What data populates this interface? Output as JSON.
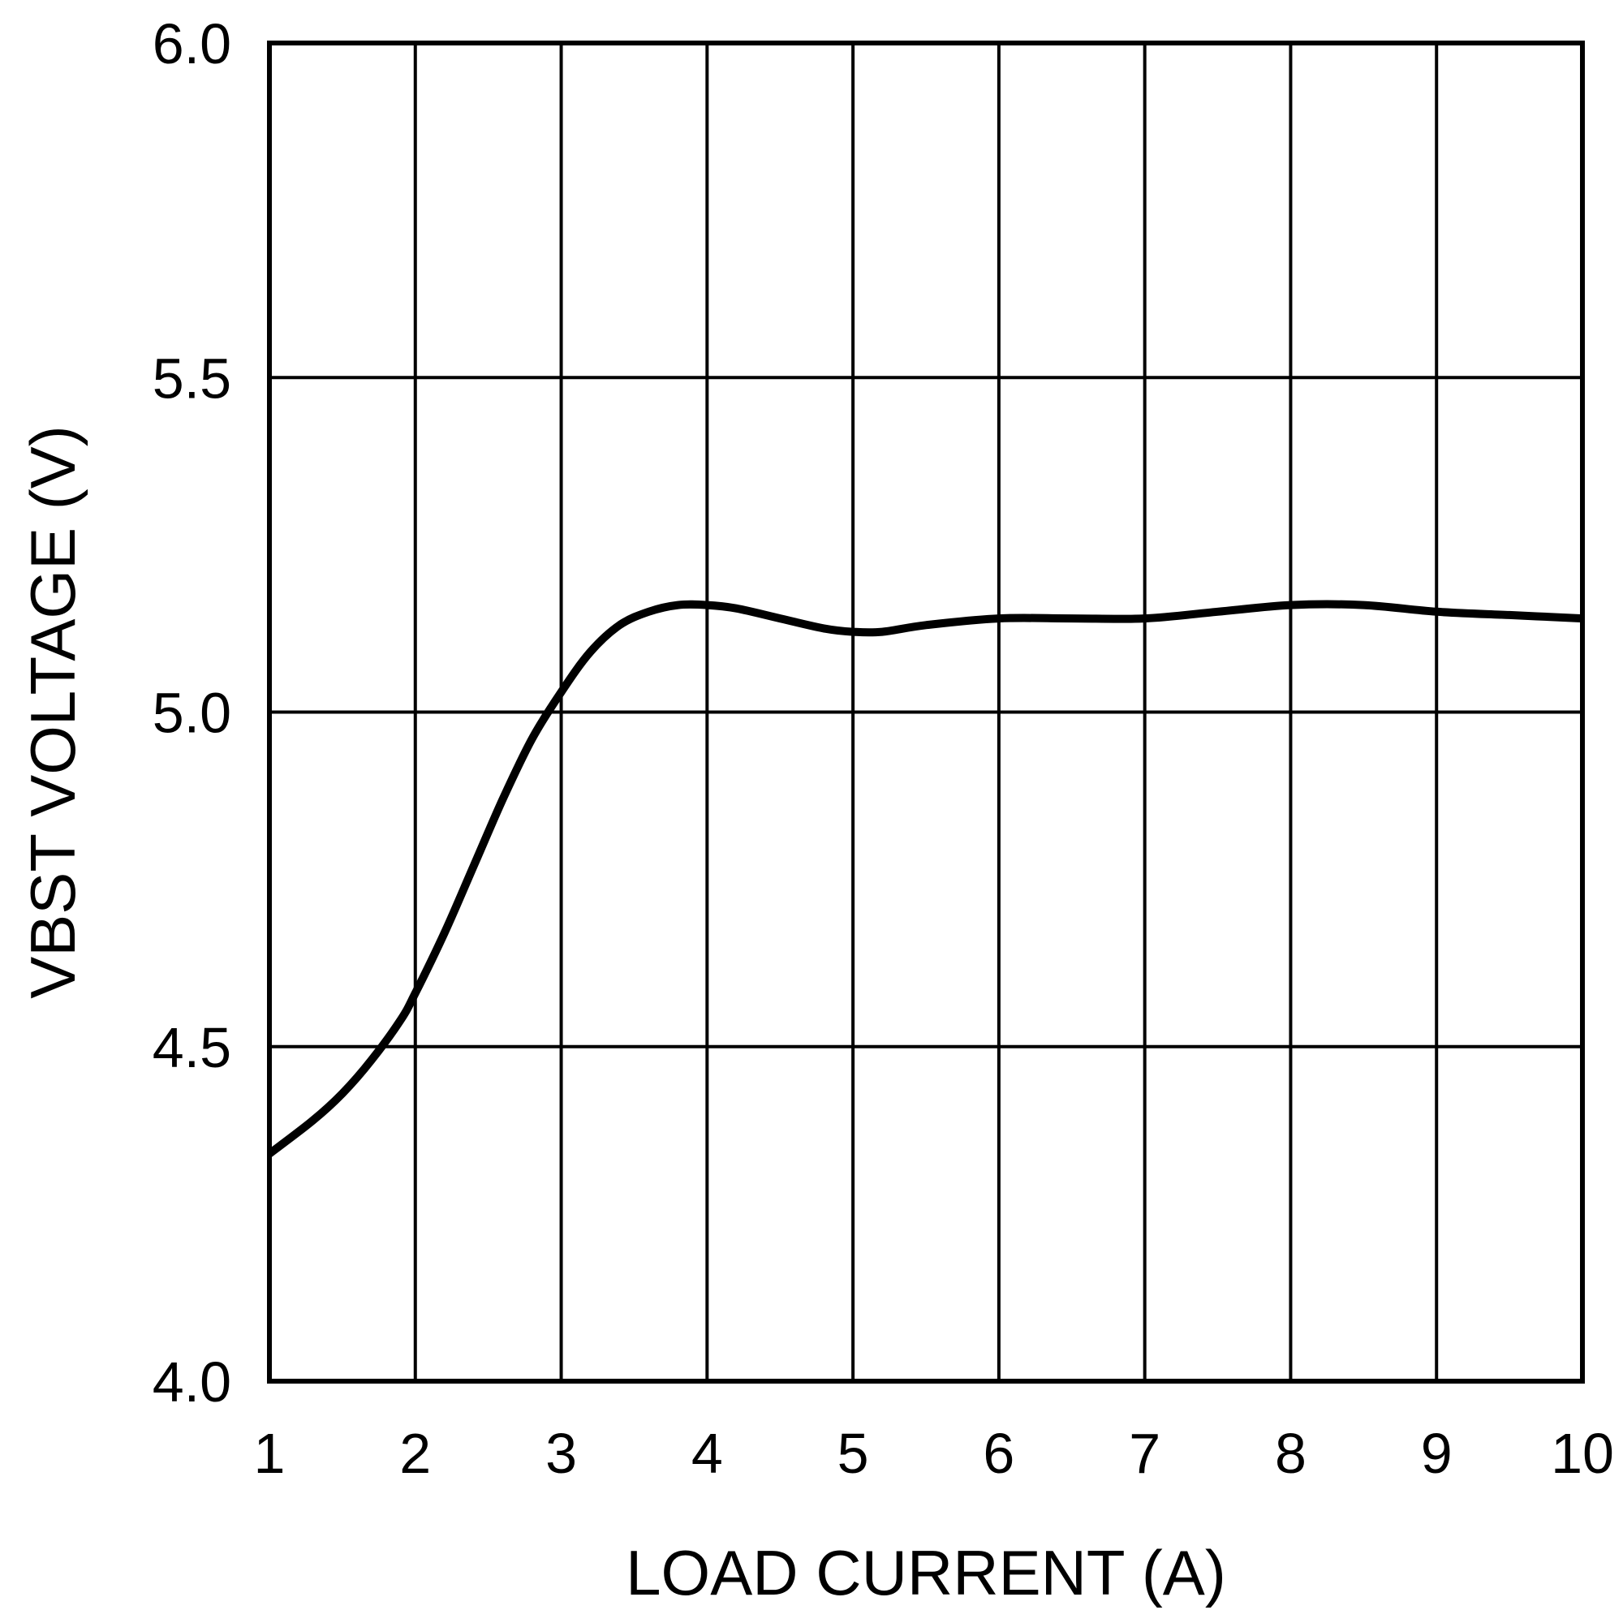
{
  "chart_data": {
    "type": "line",
    "title": "",
    "xlabel": "LOAD CURRENT (A)",
    "ylabel": "VBST VOLTAGE (V)",
    "xlim": [
      1,
      10
    ],
    "ylim": [
      4.0,
      6.0
    ],
    "x_ticks": [
      1,
      2,
      3,
      4,
      5,
      6,
      7,
      8,
      9,
      10
    ],
    "y_ticks": [
      4.0,
      4.5,
      5.0,
      5.5,
      6.0
    ],
    "x_tick_labels": [
      "1",
      "2",
      "3",
      "4",
      "5",
      "6",
      "7",
      "8",
      "9",
      "10"
    ],
    "y_tick_labels": [
      "4.0",
      "4.5",
      "5.0",
      "5.5",
      "6.0"
    ],
    "grid": true,
    "series": [
      {
        "color": "#000000",
        "x": [
          1.0,
          1.3,
          1.5,
          1.7,
          1.9,
          2.0,
          2.2,
          2.4,
          2.6,
          2.8,
          3.0,
          3.2,
          3.4,
          3.6,
          3.8,
          4.0,
          4.2,
          4.5,
          4.8,
          5.0,
          5.2,
          5.5,
          6.0,
          6.5,
          7.0,
          7.5,
          8.0,
          8.5,
          9.0,
          9.5,
          10.0
        ],
        "values": [
          4.34,
          4.39,
          4.43,
          4.48,
          4.54,
          4.58,
          4.67,
          4.77,
          4.87,
          4.96,
          5.03,
          5.09,
          5.13,
          5.15,
          5.16,
          5.16,
          5.155,
          5.14,
          5.125,
          5.12,
          5.12,
          5.13,
          5.14,
          5.14,
          5.14,
          5.15,
          5.16,
          5.16,
          5.15,
          5.145,
          5.14
        ]
      }
    ]
  }
}
